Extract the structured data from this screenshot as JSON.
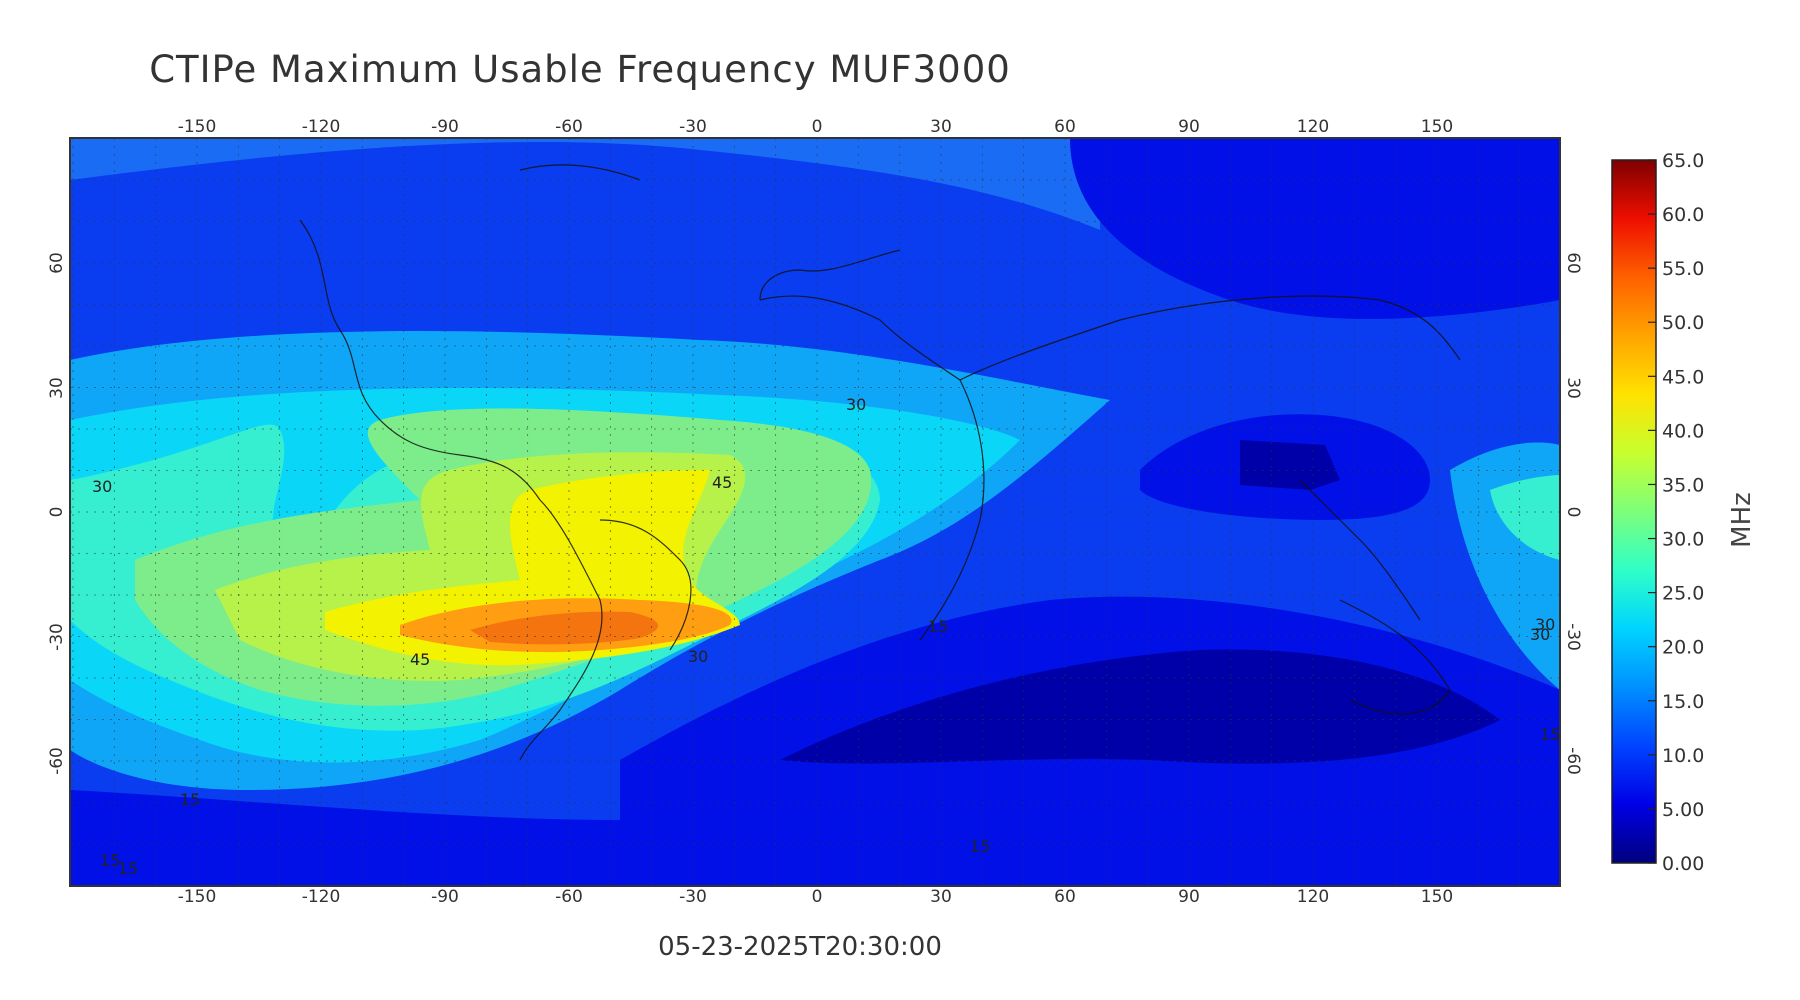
{
  "title": "CTIPe Maximum Usable Frequency MUF3000",
  "timestamp": "05-23-2025T20:30:00",
  "colorbar": {
    "unit_label": "MHz",
    "ticks": [
      "65.0",
      "60.0",
      "55.0",
      "50.0",
      "45.0",
      "40.0",
      "35.0",
      "30.0",
      "25.0",
      "20.0",
      "15.0",
      "10.0",
      "5.00",
      "0.00"
    ],
    "min": 0,
    "max": 65,
    "colormap": [
      "#00007f",
      "#0000e6",
      "#0044ff",
      "#0090ff",
      "#00d4ff",
      "#2fffc7",
      "#7dff7a",
      "#c7ff2f",
      "#ffe200",
      "#ffa400",
      "#ff6000",
      "#ee0e00",
      "#7f0000"
    ]
  },
  "map": {
    "lon_ticks": [
      "-150",
      "-120",
      "-90",
      "-60",
      "-30",
      "0",
      "30",
      "60",
      "90",
      "120",
      "150"
    ],
    "lat_ticks": [
      "60",
      "30",
      "0",
      "-30",
      "-60"
    ],
    "contour_labels": [
      "30",
      "45",
      "45",
      "30",
      "30",
      "30",
      "15",
      "15",
      "15",
      "15",
      "15",
      "30",
      "15"
    ],
    "fill_colors": {
      "level_0": "#0000a8",
      "level_5": "#0010e6",
      "level_10": "#0a3cf0",
      "level_15": "#1a6cf5",
      "level_20": "#0fa6f8",
      "level_25": "#0ad6f8",
      "level_30": "#36efd0",
      "level_35": "#7ded8c",
      "level_40": "#b6f24a",
      "level_45": "#f3f200",
      "level_55": "#ff9e10",
      "level_60": "#f47510",
      "coast": "#111111",
      "grid": "#333333"
    }
  }
}
